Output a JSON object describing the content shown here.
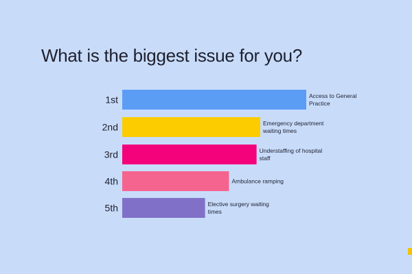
{
  "title": "What is the biggest issue for you?",
  "chart_data": {
    "type": "bar",
    "orientation": "horizontal",
    "title": "What is the biggest issue for you?",
    "categories": [
      "1st",
      "2nd",
      "3rd",
      "4th",
      "5th"
    ],
    "labels": [
      "Access to General Practice",
      "Emergency department waiting times",
      "Understaffing of hospital staff",
      "Ambulance ramping",
      "Elective surgery waiting times"
    ],
    "values": [
      100,
      75,
      73,
      58,
      45
    ],
    "colors": [
      "#5b9df5",
      "#fccc00",
      "#f3027c",
      "#f5648e",
      "#8070c8"
    ],
    "xlim": [
      0,
      100
    ],
    "grid": false,
    "legend": "none"
  }
}
